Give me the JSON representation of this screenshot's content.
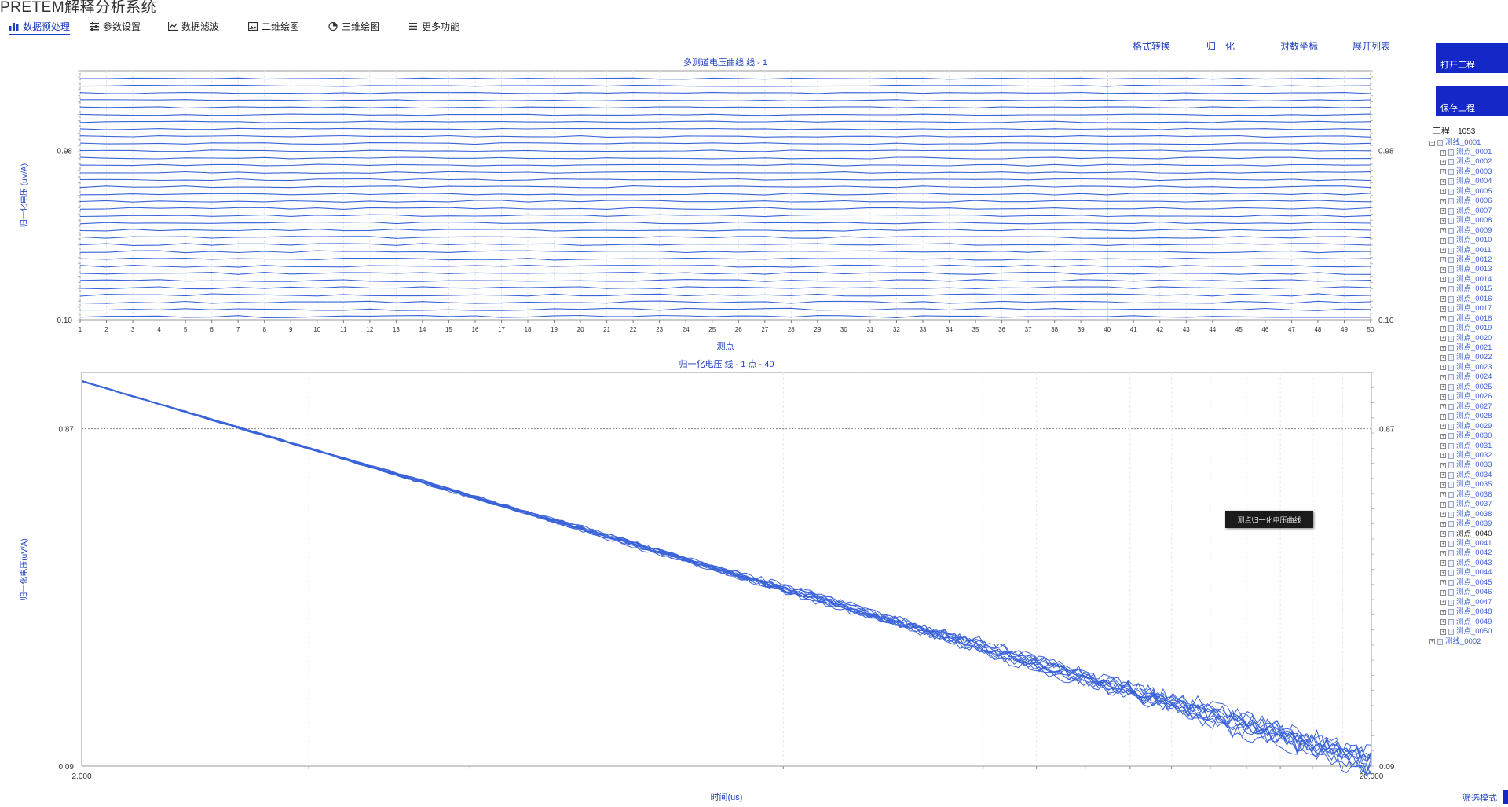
{
  "app": {
    "title": "PRETEM解释分析系统"
  },
  "menu": {
    "items": [
      {
        "label": "数据预处理",
        "icon": "bar-chart-icon",
        "active": true
      },
      {
        "label": "参数设置",
        "icon": "sliders-icon",
        "active": false
      },
      {
        "label": "数据滤波",
        "icon": "line-chart-icon",
        "active": false
      },
      {
        "label": "二维绘图",
        "icon": "image-icon",
        "active": false
      },
      {
        "label": "三维绘图",
        "icon": "pie-chart-icon",
        "active": false
      },
      {
        "label": "更多功能",
        "icon": "list-icon",
        "active": false
      }
    ]
  },
  "toolbar": {
    "format_convert": "格式转换",
    "normalize": "归一化",
    "log_coord": "对数坐标",
    "expand_list": "展开列表"
  },
  "sidebar": {
    "open_project": "打开工程",
    "save_project": "保存工程",
    "project_label": "工程:",
    "project_value": "1053",
    "tree": {
      "line1": "测线_0001",
      "line2": "测线_0002",
      "point_prefix": "测点_",
      "points": [
        "0001",
        "0002",
        "0003",
        "0004",
        "0005",
        "0006",
        "0007",
        "0008",
        "0009",
        "0010",
        "0011",
        "0012",
        "0013",
        "0014",
        "0015",
        "0016",
        "0017",
        "0018",
        "0019",
        "0020",
        "0021",
        "0022",
        "0023",
        "0024",
        "0025",
        "0026",
        "0027",
        "0028",
        "0029",
        "0030",
        "0031",
        "0032",
        "0033",
        "0034",
        "0035",
        "0036",
        "0037",
        "0038",
        "0039",
        "0040",
        "0041",
        "0042",
        "0043",
        "0044",
        "0045",
        "0046",
        "0047",
        "0048",
        "0049",
        "0050"
      ],
      "selected": "0040"
    },
    "filter_mode": "筛选模式"
  },
  "tooltip": {
    "text": "测点归一化电压曲线"
  },
  "chart_data": [
    {
      "type": "line",
      "title": "多测道电压曲线 线 - 1",
      "xlabel": "测点",
      "ylabel": "归一化电压 (uV/A)",
      "x": [
        1,
        2,
        3,
        4,
        5,
        6,
        7,
        8,
        9,
        10,
        11,
        12,
        13,
        14,
        15,
        16,
        17,
        18,
        19,
        20,
        21,
        22,
        23,
        24,
        25,
        26,
        27,
        28,
        29,
        30,
        31,
        32,
        33,
        34,
        35,
        36,
        37,
        38,
        39,
        40,
        41,
        42,
        43,
        44,
        45,
        46,
        47,
        48,
        49,
        50
      ],
      "xlim": [
        1,
        50
      ],
      "y_tick_labels": [
        "0.10",
        "0.98"
      ],
      "series_count": 34,
      "marker_x": 40,
      "marker_color": "#e53935",
      "line_color": "#3a63d8",
      "grid": true
    },
    {
      "type": "line",
      "title": "归一化电压 线 - 1   点 - 40",
      "xlabel": "时间(us)",
      "ylabel": "归一化电压(uV/A)",
      "x_scale": "log",
      "x_tick_labels": [
        "2,000",
        "20,000"
      ],
      "xlim": [
        2000,
        20000
      ],
      "y_tick_labels": [
        "0.09",
        "0.87"
      ],
      "ylim": [
        0.09,
        1.0
      ],
      "start": [
        2000,
        0.98
      ],
      "end": [
        20000,
        0.1
      ],
      "series_count": 12,
      "line_color": "#3a63d8",
      "reference_line_y": 0.87,
      "grid": true
    }
  ]
}
